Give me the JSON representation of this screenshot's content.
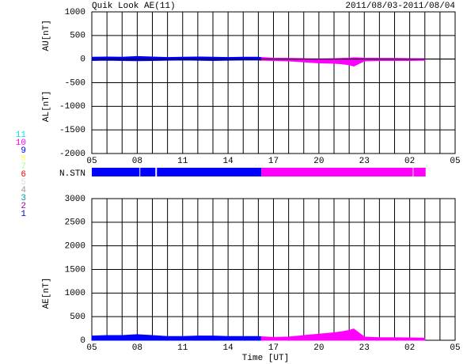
{
  "header": {
    "title": "Quik Look AE(11)",
    "date_range": "2011/08/03-2011/08/04"
  },
  "chart_data": [
    {
      "type": "band",
      "y_label_upper": "AU[nT]",
      "y_label_lower": "AL[nT]",
      "xlim": [
        5,
        29
      ],
      "xticks": [
        {
          "value": 5,
          "label": "05"
        },
        {
          "value": 8,
          "label": "08"
        },
        {
          "value": 11,
          "label": "11"
        },
        14,
        17,
        20,
        23,
        {
          "value": 26,
          "label": "02"
        },
        {
          "value": 29,
          "label": "05"
        }
      ],
      "xgrid": [
        5,
        6,
        7,
        8,
        9,
        10,
        11,
        12,
        13,
        14,
        15,
        16,
        17,
        18,
        19,
        20,
        21,
        22,
        23,
        24,
        25,
        26,
        27,
        28,
        29
      ],
      "ylim": [
        -2000,
        1000
      ],
      "yticks": [
        -2000,
        -1500,
        -1000,
        -500,
        0,
        500,
        1000
      ],
      "grid": true,
      "series": [
        {
          "color": "#0000ff",
          "x": [
            5,
            6,
            7,
            8,
            9,
            10,
            11,
            12,
            13,
            14,
            15,
            16,
            16.2
          ],
          "au": [
            40,
            45,
            40,
            55,
            45,
            35,
            40,
            45,
            40,
            35,
            40,
            40,
            35
          ],
          "al": [
            -30,
            -25,
            -30,
            -35,
            -30,
            -25,
            -20,
            -25,
            -30,
            -25,
            -20,
            -20,
            -25
          ]
        },
        {
          "color": "#ff00ff",
          "x": [
            16.2,
            17,
            18,
            19,
            20,
            21,
            21.5,
            22,
            22.3,
            23,
            24,
            25,
            26,
            27
          ],
          "au": [
            35,
            20,
            15,
            10,
            5,
            10,
            15,
            20,
            30,
            20,
            15,
            15,
            10,
            10
          ],
          "al": [
            -25,
            -30,
            -40,
            -60,
            -80,
            -90,
            -100,
            -120,
            -150,
            -40,
            -30,
            -30,
            -30,
            -25
          ]
        }
      ]
    },
    {
      "type": "segments",
      "y_label": "N.STN",
      "xlim": [
        5,
        29
      ],
      "segments": [
        {
          "x": [
            5,
            8.15
          ],
          "value": 9
        },
        {
          "x": [
            8.2,
            9.2
          ],
          "value": 9
        },
        {
          "x": [
            9.3,
            16.2
          ],
          "value": 9
        },
        {
          "x": [
            16.2,
            26.2
          ],
          "value": 10
        },
        {
          "x": [
            26.25,
            27.05
          ],
          "value": 10
        }
      ],
      "legend": [
        {
          "label": "11",
          "value": 11,
          "color": "#00e5e5"
        },
        {
          "label": "10",
          "value": 10,
          "color": "#ff00ff"
        },
        {
          "label": "9",
          "value": 9,
          "color": "#0000ff"
        },
        {
          "label": "8",
          "value": 8,
          "color": "#ffff66"
        },
        {
          "label": "7",
          "value": 7,
          "color": "#99ff99"
        },
        {
          "label": "6",
          "value": 6,
          "color": "#ff0000"
        },
        {
          "label": "5",
          "value": 5,
          "color": "#dddddd"
        },
        {
          "label": "4",
          "value": 4,
          "color": "#999999"
        },
        {
          "label": "3",
          "value": 3,
          "color": "#009999"
        },
        {
          "label": "2",
          "value": 2,
          "color": "#990099"
        },
        {
          "label": "1",
          "value": 1,
          "color": "#0000cc"
        }
      ]
    },
    {
      "type": "area",
      "y_label": "AE[nT]",
      "x_label": "Time [UT]",
      "xlim": [
        5,
        29
      ],
      "xticks": [
        {
          "value": 5,
          "label": "05"
        },
        {
          "value": 8,
          "label": "08"
        },
        {
          "value": 11,
          "label": "11"
        },
        14,
        17,
        20,
        23,
        {
          "value": 26,
          "label": "02"
        },
        {
          "value": 29,
          "label": "05"
        }
      ],
      "xgrid": [
        5,
        6,
        7,
        8,
        9,
        10,
        11,
        12,
        13,
        14,
        15,
        16,
        17,
        18,
        19,
        20,
        21,
        22,
        23,
        24,
        25,
        26,
        27,
        28,
        29
      ],
      "ylim": [
        0,
        3000
      ],
      "yticks": [
        0,
        500,
        1000,
        1500,
        2000,
        2500,
        3000
      ],
      "grid": true,
      "series": [
        {
          "color": "#0000ff",
          "x": [
            5,
            6,
            7,
            8,
            9,
            10,
            11,
            12,
            13,
            14,
            15,
            16,
            16.2
          ],
          "values": [
            90,
            100,
            100,
            120,
            100,
            80,
            80,
            90,
            90,
            80,
            80,
            80,
            75
          ]
        },
        {
          "color": "#ff00ff",
          "x": [
            16.2,
            17,
            18,
            19,
            20,
            21,
            21.5,
            22,
            22.3,
            23,
            24,
            25,
            26,
            27
          ],
          "values": [
            75,
            60,
            70,
            100,
            130,
            160,
            180,
            210,
            240,
            70,
            55,
            55,
            50,
            45
          ]
        }
      ]
    }
  ]
}
